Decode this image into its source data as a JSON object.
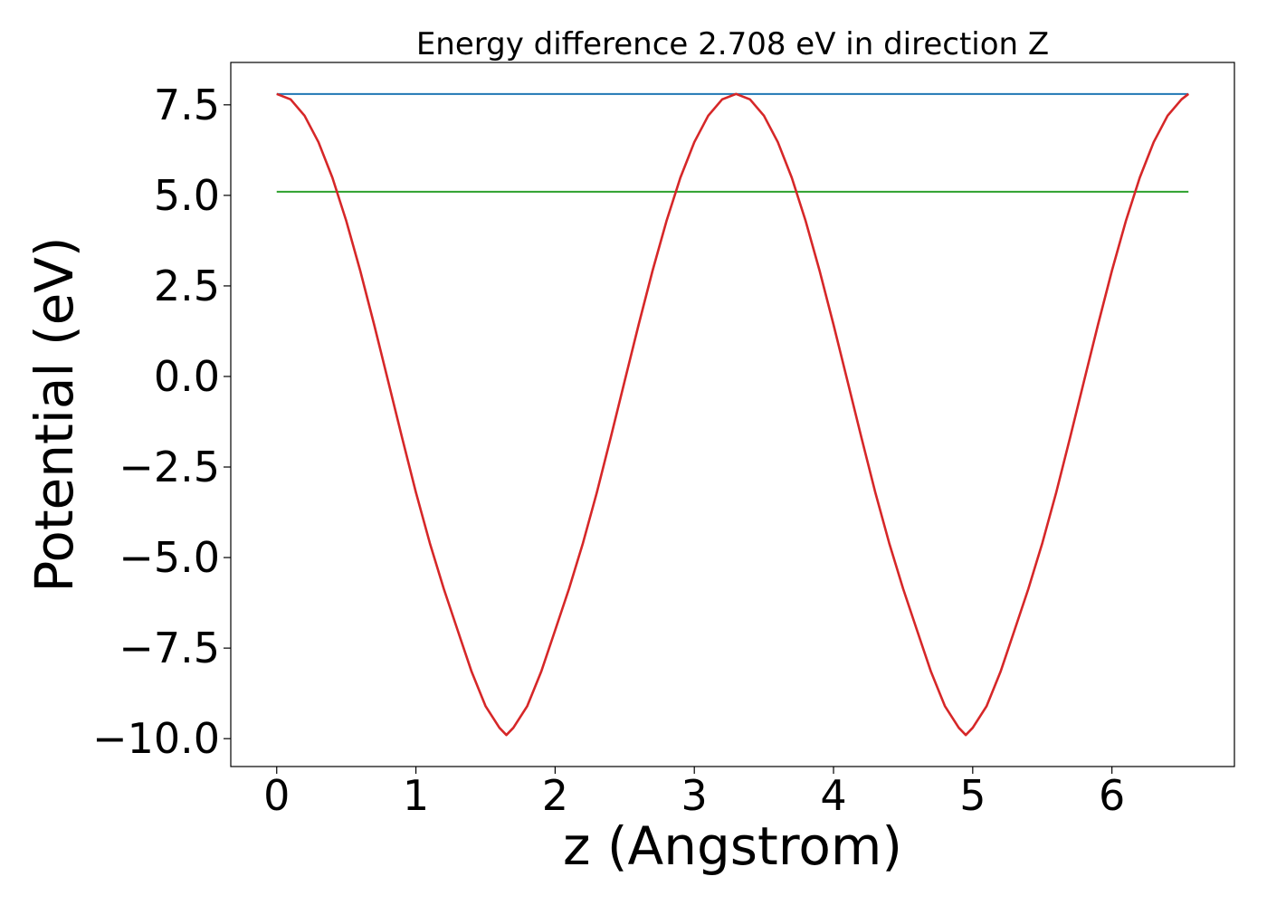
{
  "chart_data": {
    "type": "line",
    "title": "Energy difference 2.708 eV in direction Z",
    "xlabel": "z (Angstrom)",
    "ylabel": "Potential (eV)",
    "xlim": [
      -0.33,
      6.88
    ],
    "ylim": [
      -10.77,
      8.67
    ],
    "xticks": [
      0,
      1,
      2,
      3,
      4,
      5,
      6
    ],
    "xtick_labels": [
      "0",
      "1",
      "2",
      "3",
      "4",
      "5",
      "6"
    ],
    "yticks": [
      7.5,
      5.0,
      2.5,
      0.0,
      -2.5,
      -5.0,
      -7.5,
      -10.0
    ],
    "ytick_labels": [
      "7.5",
      "5.0",
      "2.5",
      "0.0",
      "−2.5",
      "−5.0",
      "−7.5",
      "−10.0"
    ],
    "grid": false,
    "series": [
      {
        "color": "#d62728",
        "x": [
          0.0,
          0.1,
          0.2,
          0.3,
          0.4,
          0.5,
          0.6,
          0.7,
          0.8,
          0.9,
          1.0,
          1.1,
          1.2,
          1.3,
          1.4,
          1.5,
          1.6,
          1.65,
          1.7,
          1.8,
          1.9,
          2.0,
          2.1,
          2.2,
          2.3,
          2.4,
          2.5,
          2.6,
          2.7,
          2.8,
          2.9,
          3.0,
          3.1,
          3.2,
          3.3,
          3.4,
          3.5,
          3.6,
          3.7,
          3.8,
          3.9,
          4.0,
          4.1,
          4.2,
          4.3,
          4.4,
          4.5,
          4.6,
          4.7,
          4.8,
          4.9,
          4.95,
          5.0,
          5.1,
          5.2,
          5.3,
          5.4,
          5.5,
          5.6,
          5.7,
          5.8,
          5.9,
          6.0,
          6.1,
          6.2,
          6.3,
          6.4,
          6.5,
          6.55
        ],
        "y": [
          7.8,
          7.65,
          7.2,
          6.47,
          5.49,
          4.29,
          2.92,
          1.43,
          -0.12,
          -1.68,
          -3.2,
          -4.6,
          -5.86,
          -7.01,
          -8.15,
          -9.1,
          -9.7,
          -9.9,
          -9.7,
          -9.1,
          -8.15,
          -7.01,
          -5.86,
          -4.6,
          -3.2,
          -1.68,
          -0.12,
          1.43,
          2.92,
          4.29,
          5.49,
          6.47,
          7.2,
          7.65,
          7.8,
          7.65,
          7.2,
          6.47,
          5.49,
          4.29,
          2.92,
          1.43,
          -0.12,
          -1.68,
          -3.2,
          -4.6,
          -5.86,
          -7.01,
          -8.15,
          -9.1,
          -9.7,
          -9.9,
          -9.7,
          -9.1,
          -8.15,
          -7.01,
          -5.86,
          -4.6,
          -3.2,
          -1.68,
          -0.12,
          1.43,
          2.92,
          4.29,
          5.49,
          6.47,
          7.2,
          7.65,
          7.8
        ]
      },
      {
        "color": "#1f77b4",
        "x": [
          0.0,
          6.55
        ],
        "y": [
          7.8,
          7.8
        ]
      },
      {
        "color": "#2ca02c",
        "x": [
          0.0,
          6.55
        ],
        "y": [
          5.1,
          5.1
        ]
      }
    ]
  }
}
